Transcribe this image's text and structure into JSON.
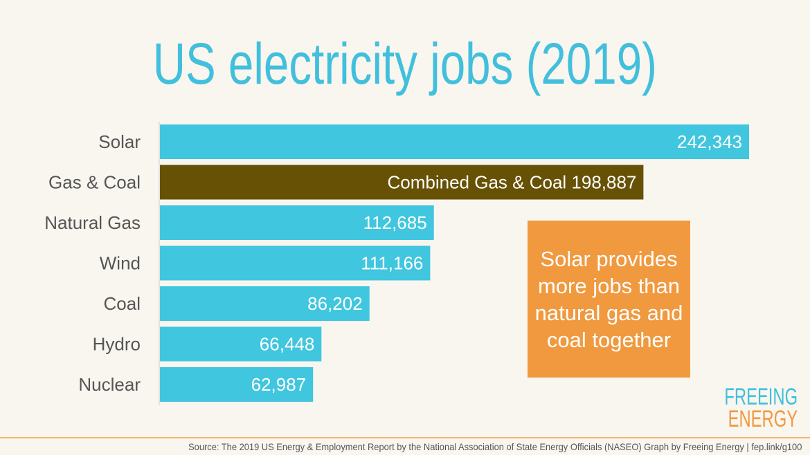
{
  "chart_data": {
    "type": "bar",
    "orientation": "horizontal",
    "title": "US electricity jobs (2019)",
    "categories": [
      "Solar",
      "Gas & Coal",
      "Natural Gas",
      "Wind",
      "Coal",
      "Hydro",
      "Nuclear"
    ],
    "values": [
      242343,
      198887,
      112685,
      111166,
      86202,
      66448,
      62987
    ],
    "data_labels": [
      "242,343",
      "Combined Gas & Coal 198,887",
      "112,685",
      "111,166",
      "86,202",
      "66,448",
      "62,987"
    ],
    "bar_colors": [
      "#40c6de",
      "#675104",
      "#40c6de",
      "#40c6de",
      "#40c6de",
      "#40c6de",
      "#40c6de"
    ],
    "xlim": [
      0,
      242343
    ],
    "grid": false,
    "annotation": "Solar provides more jobs than natural gas and coal together"
  },
  "colors": {
    "accent": "#41bfdc",
    "callout": "#f0993f",
    "background": "#f8f6ef"
  },
  "logo": {
    "line1": "FREEING",
    "line2": "ENERGY"
  },
  "source": "Source: The 2019 US Energy & Employment Report by the National Association of State Energy Officials (NASEO) Graph by Freeing Energy | fep.link/g100"
}
